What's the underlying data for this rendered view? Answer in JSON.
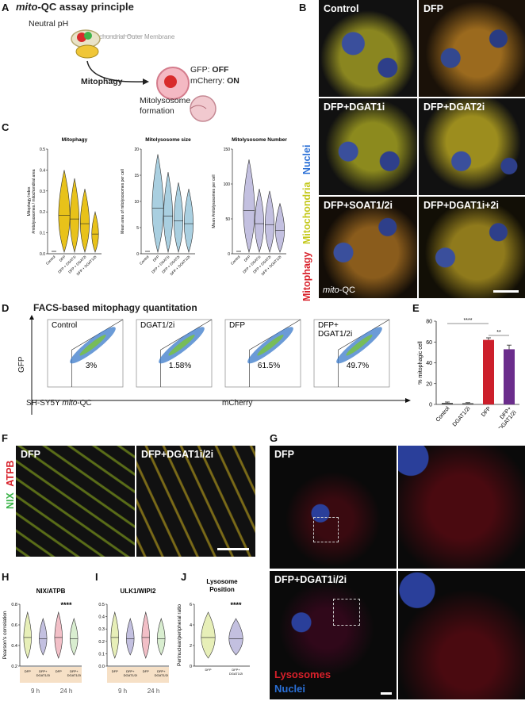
{
  "panelA": {
    "letter": "A",
    "title_prefix": "mito",
    "title_rest": "-QC assay principle",
    "neutral": "Neutral pH",
    "omm": "Mitochondrial Outer Membrane",
    "mitophagy": "Mitophagy",
    "gfp_label": "GFP: ",
    "gfp_state": "OFF",
    "mch_label": "mCherry: ",
    "mch_state": "ON",
    "mitolyso1": "Mitolysosome",
    "mitolyso2": "formation"
  },
  "panelB": {
    "letter": "B",
    "tiles": [
      "Control",
      "DFP",
      "DFP+DGAT1i",
      "DFP+DGAT2i",
      "DFP+SOAT1/2i",
      "DFP+DGAT1i+2i"
    ],
    "side_nuclei": "Nuclei",
    "side_mito": "Mitochondria",
    "side_mitophagy": "Mitophagy",
    "corner_prefix": "mito",
    "corner_rest": "-QC"
  },
  "panelC": {
    "letter": "C",
    "plots": [
      {
        "title": "Mitophagy",
        "ylabel1": "Mitophagy Index",
        "ylabel2": "#mitolysosomes / mitochondrial area",
        "yticks": [
          "0.0",
          "0.1",
          "0.2",
          "0.3",
          "0.4",
          "0.5"
        ],
        "color": "#e8c21a"
      },
      {
        "title": "Mitolysosome size",
        "ylabel1": "Mean area of mitolysosomes per cell",
        "ylabel2": "",
        "yticks": [
          "0",
          "5",
          "10",
          "15",
          "20"
        ],
        "color": "#a9cfe0"
      },
      {
        "title": "Mitolysosome Number",
        "ylabel1": "Mean #mitolysosomes per cell",
        "ylabel2": "",
        "yticks": [
          "0",
          "50",
          "100",
          "150"
        ],
        "color": "#c3c0e0"
      }
    ],
    "xcats": [
      "Control",
      "DFP",
      "DFP + DGAT1i",
      "DFP + DGAT2i",
      "DFP + DGAT1/2i"
    ]
  },
  "panelD": {
    "letter": "D",
    "title": "FACS-based mitophagy quantitation",
    "yaxis": "GFP",
    "xaxis": "mCherry",
    "cellline_prefix": "SH-SY5Y ",
    "cellline_em": "mito",
    "cellline_rest": "-QC",
    "plots": [
      {
        "label": "Control",
        "label2": "",
        "pct": "3%"
      },
      {
        "label": "DGAT1/2i",
        "label2": "",
        "pct": "1.58%"
      },
      {
        "label": "DFP",
        "label2": "",
        "pct": "61.5%"
      },
      {
        "label": "DFP+",
        "label2": "DGAT1/2i",
        "pct": "49.7%"
      }
    ]
  },
  "panelE": {
    "letter": "E",
    "ylabel": "% mitophagic cell",
    "yticks": [
      "0",
      "20",
      "40",
      "60",
      "80"
    ],
    "sig1": "****",
    "sig2": "**",
    "categories": [
      "Control",
      "DGAT1/2i",
      "DFP",
      "DFP+ DGAT1/2i"
    ],
    "values": [
      1.5,
      1.2,
      62,
      53
    ],
    "errors": [
      0.8,
      0.5,
      2,
      4
    ],
    "colors": [
      "#555555",
      "#555555",
      "#cc1f2b",
      "#6b2d8c"
    ]
  },
  "panelF": {
    "letter": "F",
    "tiles": [
      "DFP",
      "DFP+DGAT1i/2i"
    ],
    "side_nix": "NIX",
    "side_atpb": "ATPB"
  },
  "panelG": {
    "letter": "G",
    "tiles": [
      "DFP",
      "DFP+DGAT1i/2i"
    ],
    "legend_lyso": "Lysosomes",
    "legend_nuclei": "Nuclei"
  },
  "panelH": {
    "letter": "H",
    "title": "NIX/ATPB",
    "ylabel": "Pearson's correlation",
    "yticks": [
      "0.2",
      "0.4",
      "0.6",
      "0.8"
    ],
    "sig": "****",
    "xcats": [
      "DFP",
      "DFP+ DGAT1/2i",
      "DFP",
      "DFP+ DGAT1/2i"
    ],
    "groups": [
      "9 h",
      "24 h"
    ]
  },
  "panelI": {
    "letter": "I",
    "title": "ULK1/WIPI2",
    "yticks": [
      "0.0",
      "0.1",
      "0.2",
      "0.3",
      "0.4",
      "0.5"
    ],
    "xcats": [
      "DFP",
      "DFP+ DGAT1/2i",
      "DFP",
      "DFP+ DGAT1/2i"
    ],
    "groups": [
      "9 h",
      "24 h"
    ]
  },
  "panelJ": {
    "letter": "J",
    "title1": "Lysosome",
    "title2": "Position",
    "ylabel": "Perinuclear/peripheral ratio",
    "yticks": [
      "0",
      "2",
      "4",
      "6"
    ],
    "sig": "****",
    "xcats": [
      "DFP",
      "DFP+ DGAT1/2i"
    ]
  },
  "colors": {
    "mitophagy_red": "#d8202a",
    "mito_yellow": "#c4c81a",
    "nuclei_blue": "#2a6fd6",
    "nix_green": "#3cb44b"
  }
}
